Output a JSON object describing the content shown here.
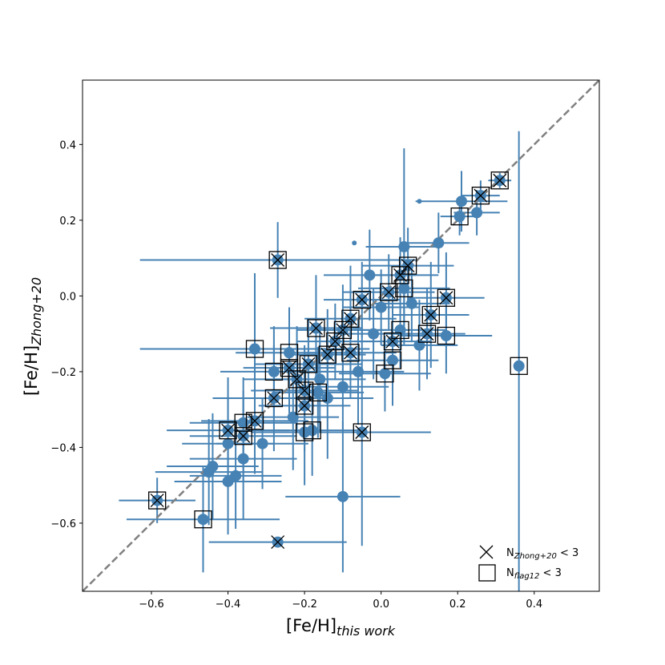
{
  "chart_data": {
    "type": "scatter",
    "title": "",
    "xlabel": {
      "base": "[Fe/H]",
      "sub": "this work"
    },
    "ylabel": {
      "base": "[Fe/H]",
      "sub": "Zhong+20"
    },
    "xlim": [
      -0.78,
      0.57
    ],
    "ylim": [
      -0.78,
      0.57
    ],
    "xticks": [
      -0.6,
      -0.4,
      -0.2,
      0.0,
      0.2,
      0.4
    ],
    "yticks": [
      -0.6,
      -0.4,
      -0.2,
      0.0,
      0.2,
      0.4
    ],
    "xtick_labels": [
      "−0.6",
      "−0.4",
      "−0.2",
      "0.0",
      "0.2",
      "0.4"
    ],
    "ytick_labels": [
      "−0.6",
      "−0.4",
      "−0.2",
      "0.0",
      "0.2",
      "0.4"
    ],
    "grid": false,
    "legend_position": "bottom-right",
    "one_to_one_line": {
      "style": "dashed",
      "color": "#808080"
    },
    "colors": {
      "points": "#4682b4",
      "markers": "#000000"
    },
    "legend": [
      {
        "marker": "x",
        "label_base": "N",
        "label_sub": "Zhong+20",
        "label_tail": " < 3"
      },
      {
        "marker": "square",
        "label_base": "N",
        "label_sub": "flag12",
        "label_tail": " < 3"
      }
    ],
    "points": [
      {
        "x": 0.31,
        "y": 0.305,
        "xerr": 0.03,
        "yerr": 0.02,
        "cross": true,
        "square": true
      },
      {
        "x": 0.26,
        "y": 0.265,
        "xerr": 0.05,
        "yerr": 0.04,
        "cross": true,
        "square": true
      },
      {
        "x": 0.205,
        "y": 0.21,
        "xerr": 0.05,
        "yerr": 0.05,
        "cross": false,
        "square": true
      },
      {
        "x": 0.21,
        "y": 0.25,
        "xerr": 0.12,
        "yerr": 0.08,
        "cross": false,
        "square": false
      },
      {
        "x": 0.25,
        "y": 0.22,
        "xerr": 0.06,
        "yerr": 0.06,
        "cross": false,
        "square": false
      },
      {
        "x": 0.15,
        "y": 0.14,
        "xerr": 0.08,
        "yerr": 0.08,
        "cross": false,
        "square": false
      },
      {
        "x": 0.36,
        "y": -0.185,
        "xerr": 0.0,
        "yerr": 0.62,
        "cross": false,
        "square": true
      },
      {
        "x": 0.17,
        "y": -0.005,
        "xerr": 0.1,
        "yerr": 0.12,
        "cross": true,
        "square": true
      },
      {
        "x": 0.17,
        "y": -0.105,
        "xerr": 0.12,
        "yerr": 0.1,
        "cross": false,
        "square": true
      },
      {
        "x": 0.13,
        "y": -0.05,
        "xerr": 0.1,
        "yerr": 0.14,
        "cross": true,
        "square": true
      },
      {
        "x": 0.12,
        "y": -0.1,
        "xerr": 0.1,
        "yerr": 0.12,
        "cross": true,
        "square": true
      },
      {
        "x": 0.07,
        "y": 0.08,
        "xerr": 0.12,
        "yerr": 0.1,
        "cross": true,
        "square": true
      },
      {
        "x": 0.06,
        "y": 0.13,
        "xerr": 0.1,
        "yerr": 0.26,
        "cross": false,
        "square": false
      },
      {
        "x": 0.05,
        "y": 0.055,
        "xerr": 0.1,
        "yerr": 0.1,
        "cross": true,
        "square": true
      },
      {
        "x": 0.06,
        "y": 0.02,
        "xerr": 0.12,
        "yerr": 0.1,
        "cross": false,
        "square": true
      },
      {
        "x": 0.05,
        "y": -0.09,
        "xerr": 0.12,
        "yerr": 0.1,
        "cross": false,
        "square": true
      },
      {
        "x": 0.03,
        "y": -0.12,
        "xerr": 0.1,
        "yerr": 0.12,
        "cross": true,
        "square": true
      },
      {
        "x": 0.03,
        "y": -0.17,
        "xerr": 0.12,
        "yerr": 0.12,
        "cross": false,
        "square": true
      },
      {
        "x": 0.01,
        "y": -0.205,
        "xerr": 0.12,
        "yerr": 0.1,
        "cross": false,
        "square": true
      },
      {
        "x": 0.02,
        "y": 0.01,
        "xerr": 0.12,
        "yerr": 0.1,
        "cross": true,
        "square": true
      },
      {
        "x": 0.0,
        "y": -0.03,
        "xerr": 0.1,
        "yerr": 0.1,
        "cross": false,
        "square": false
      },
      {
        "x": -0.03,
        "y": 0.055,
        "xerr": 0.12,
        "yerr": 0.12,
        "cross": false,
        "square": false
      },
      {
        "x": -0.05,
        "y": -0.01,
        "xerr": 0.1,
        "yerr": 0.1,
        "cross": true,
        "square": true
      },
      {
        "x": -0.05,
        "y": -0.36,
        "xerr": 0.18,
        "yerr": 0.3,
        "cross": true,
        "square": true
      },
      {
        "x": -0.1,
        "y": -0.53,
        "xerr": 0.15,
        "yerr": 0.2,
        "cross": false,
        "square": false
      },
      {
        "x": -0.08,
        "y": -0.06,
        "xerr": 0.12,
        "yerr": 0.14,
        "cross": true,
        "square": true
      },
      {
        "x": -0.1,
        "y": -0.09,
        "xerr": 0.12,
        "yerr": 0.12,
        "cross": true,
        "square": true
      },
      {
        "x": -0.08,
        "y": -0.15,
        "xerr": 0.12,
        "yerr": 0.12,
        "cross": true,
        "square": true
      },
      {
        "x": -0.12,
        "y": -0.12,
        "xerr": 0.1,
        "yerr": 0.1,
        "cross": true,
        "square": true
      },
      {
        "x": -0.14,
        "y": -0.155,
        "xerr": 0.1,
        "yerr": 0.12,
        "cross": true,
        "square": true
      },
      {
        "x": -0.17,
        "y": -0.085,
        "xerr": 0.12,
        "yerr": 0.14,
        "cross": true,
        "square": true
      },
      {
        "x": -0.19,
        "y": -0.18,
        "xerr": 0.14,
        "yerr": 0.12,
        "cross": true,
        "square": true
      },
      {
        "x": -0.24,
        "y": -0.15,
        "xerr": 0.14,
        "yerr": 0.12,
        "cross": false,
        "square": true
      },
      {
        "x": -0.24,
        "y": -0.19,
        "xerr": 0.12,
        "yerr": 0.12,
        "cross": true,
        "square": true
      },
      {
        "x": -0.22,
        "y": -0.22,
        "xerr": 0.14,
        "yerr": 0.14,
        "cross": true,
        "square": true
      },
      {
        "x": -0.28,
        "y": -0.2,
        "xerr": 0.14,
        "yerr": 0.12,
        "cross": false,
        "square": true
      },
      {
        "x": -0.2,
        "y": -0.25,
        "xerr": 0.14,
        "yerr": 0.12,
        "cross": true,
        "square": true
      },
      {
        "x": -0.165,
        "y": -0.255,
        "xerr": 0.12,
        "yerr": 0.12,
        "cross": false,
        "square": true
      },
      {
        "x": -0.28,
        "y": -0.27,
        "xerr": 0.16,
        "yerr": 0.14,
        "cross": true,
        "square": true
      },
      {
        "x": -0.2,
        "y": -0.29,
        "xerr": 0.12,
        "yerr": 0.12,
        "cross": true,
        "square": true
      },
      {
        "x": -0.2,
        "y": -0.36,
        "xerr": 0.14,
        "yerr": 0.14,
        "cross": false,
        "square": true
      },
      {
        "x": -0.18,
        "y": -0.355,
        "xerr": 0.14,
        "yerr": 0.12,
        "cross": false,
        "square": true
      },
      {
        "x": -0.27,
        "y": 0.095,
        "xerr": 0.36,
        "yerr": 0.1,
        "cross": true,
        "square": true
      },
      {
        "x": -0.33,
        "y": -0.14,
        "xerr": 0.3,
        "yerr": 0.2,
        "cross": false,
        "square": true
      },
      {
        "x": -0.33,
        "y": -0.33,
        "xerr": 0.14,
        "yerr": 0.14,
        "cross": true,
        "square": true
      },
      {
        "x": -0.36,
        "y": -0.335,
        "xerr": 0.14,
        "yerr": 0.12,
        "cross": false,
        "square": true
      },
      {
        "x": -0.36,
        "y": -0.37,
        "xerr": 0.14,
        "yerr": 0.12,
        "cross": true,
        "square": true
      },
      {
        "x": -0.4,
        "y": -0.355,
        "xerr": 0.16,
        "yerr": 0.14,
        "cross": true,
        "square": true
      },
      {
        "x": -0.4,
        "y": -0.39,
        "xerr": 0.12,
        "yerr": 0.12,
        "cross": false,
        "square": false
      },
      {
        "x": -0.31,
        "y": -0.39,
        "xerr": 0.12,
        "yerr": 0.12,
        "cross": false,
        "square": false
      },
      {
        "x": -0.36,
        "y": -0.43,
        "xerr": 0.14,
        "yerr": 0.16,
        "cross": false,
        "square": false
      },
      {
        "x": -0.44,
        "y": -0.45,
        "xerr": 0.12,
        "yerr": 0.14,
        "cross": false,
        "square": false
      },
      {
        "x": -0.45,
        "y": -0.465,
        "xerr": 0.14,
        "yerr": 0.14,
        "cross": false,
        "square": false
      },
      {
        "x": -0.38,
        "y": -0.475,
        "xerr": 0.12,
        "yerr": 0.14,
        "cross": false,
        "square": false
      },
      {
        "x": -0.4,
        "y": -0.49,
        "xerr": 0.14,
        "yerr": 0.14,
        "cross": false,
        "square": false
      },
      {
        "x": -0.585,
        "y": -0.54,
        "xerr": 0.1,
        "yerr": 0.06,
        "cross": true,
        "square": true
      },
      {
        "x": -0.465,
        "y": -0.59,
        "xerr": 0.2,
        "yerr": 0.14,
        "cross": false,
        "square": true
      },
      {
        "x": -0.27,
        "y": -0.65,
        "xerr": 0.18,
        "yerr": 0.0,
        "cross": true,
        "square": false
      },
      {
        "x": -0.14,
        "y": -0.27,
        "xerr": 0.12,
        "yerr": 0.16,
        "cross": false,
        "square": false
      },
      {
        "x": -0.1,
        "y": -0.24,
        "xerr": 0.12,
        "yerr": 0.12,
        "cross": false,
        "square": false
      },
      {
        "x": -0.06,
        "y": -0.2,
        "xerr": 0.12,
        "yerr": 0.14,
        "cross": false,
        "square": false
      },
      {
        "x": -0.02,
        "y": -0.1,
        "xerr": 0.1,
        "yerr": 0.12,
        "cross": false,
        "square": false
      },
      {
        "x": 0.1,
        "y": -0.13,
        "xerr": 0.1,
        "yerr": 0.12,
        "cross": false,
        "square": false
      },
      {
        "x": 0.08,
        "y": -0.02,
        "xerr": 0.1,
        "yerr": 0.1,
        "cross": false,
        "square": false
      },
      {
        "x": -0.16,
        "y": -0.22,
        "xerr": 0.12,
        "yerr": 0.14,
        "cross": false,
        "square": false
      },
      {
        "x": -0.23,
        "y": -0.32,
        "xerr": 0.12,
        "yerr": 0.14,
        "cross": false,
        "square": false
      },
      {
        "x": 0.1,
        "y": 0.25,
        "xerr": 0.0,
        "yerr": 0.0,
        "cross": false,
        "square": false
      },
      {
        "x": -0.07,
        "y": 0.14,
        "xerr": 0.0,
        "yerr": 0.0,
        "cross": false,
        "square": false
      }
    ]
  }
}
